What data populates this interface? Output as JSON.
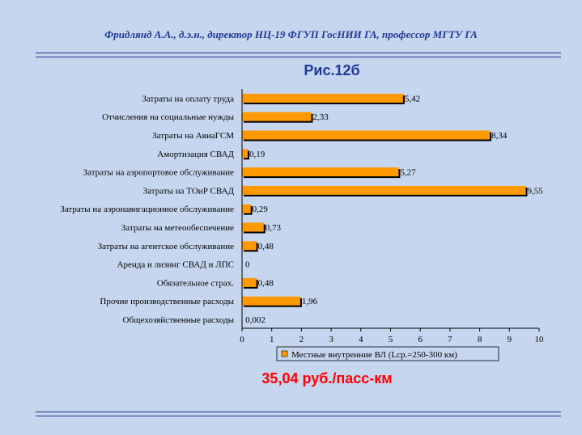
{
  "header": "Фридлянд А.А., д.э.н., директор  НЦ-19 ФГУП ГосНИИ ГА, профессор МГТУ ГА",
  "figure_title": "Рис.12б",
  "total_text": "35,04 руб./пасс-км",
  "colors": {
    "bar": "#ff9900",
    "bar_shadow": "#000000",
    "header_text": "#1f3a93",
    "total_text": "#ff0000",
    "background": "#c6d6ef"
  },
  "chart_data": {
    "type": "bar",
    "orientation": "horizontal",
    "categories": [
      "Затраты на оплату труда",
      "Отчисления на социальные нужды",
      "Затраты на АвиаГСМ",
      "Амортизация СВАД",
      "Затраты на аэропортовое обслуживание",
      "Затраты на ТОиР СВАД",
      "Затраты на аэронавигационное обслуживание",
      "Затраты на метеообеспечение",
      "Затраты на агентское обслуживание",
      "Аренда и лизинг СВАД и ЛПС",
      "Обязательное страх.",
      "Прочие производственные расходы",
      "Общехозяйственные расходы"
    ],
    "series": [
      {
        "name": "Местные внутренние ВЛ (Lср.=250-300 км)",
        "values": [
          5.42,
          2.33,
          8.34,
          0.19,
          5.27,
          9.55,
          0.29,
          0.73,
          0.48,
          0,
          0.48,
          1.96,
          0.002
        ]
      }
    ],
    "value_labels": [
      "5,42",
      "2,33",
      "8,34",
      "0,19",
      "5,27",
      "9,55",
      "0,29",
      "0,73",
      "0,48",
      "0",
      "0,48",
      "1,96",
      "0,002"
    ],
    "x_ticks": [
      "0",
      "1",
      "2",
      "3",
      "4",
      "5",
      "6",
      "7",
      "8",
      "9",
      "10"
    ],
    "xlim": [
      0,
      10
    ],
    "legend_position": "bottom-center",
    "grid": false
  }
}
